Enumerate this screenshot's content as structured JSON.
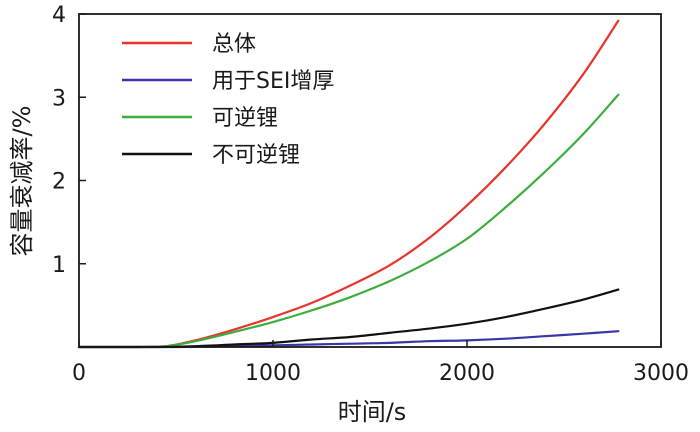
{
  "chart_data": {
    "type": "line",
    "xlabel": "时间/s",
    "ylabel": "容量衰减率/%",
    "xlim": [
      0,
      3000
    ],
    "ylim": [
      0,
      4
    ],
    "xticks": [
      0,
      1000,
      2000,
      3000
    ],
    "yticks": [
      1,
      2,
      3,
      4
    ],
    "xtick_labels": [
      "0",
      "1000",
      "2000",
      "3000"
    ],
    "ytick_labels": [
      "1",
      "2",
      "3",
      "4"
    ],
    "grid": false,
    "legend_position": "top-left",
    "series": [
      {
        "name": "总体",
        "color": "#e8342c",
        "x": [
          0,
          300,
          450,
          600,
          800,
          1000,
          1200,
          1400,
          1600,
          1800,
          2000,
          2200,
          2400,
          2600,
          2780
        ],
        "y": [
          0,
          0,
          0.01,
          0.08,
          0.21,
          0.36,
          0.53,
          0.74,
          0.98,
          1.3,
          1.7,
          2.16,
          2.68,
          3.28,
          3.92
        ]
      },
      {
        "name": "用于SEI增厚",
        "color": "#3737a5",
        "x": [
          0,
          500,
          800,
          1000,
          1200,
          1400,
          1600,
          1800,
          2000,
          2200,
          2400,
          2600,
          2780
        ],
        "y": [
          0,
          0,
          0.01,
          0.02,
          0.03,
          0.04,
          0.05,
          0.07,
          0.08,
          0.1,
          0.13,
          0.16,
          0.19
        ]
      },
      {
        "name": "可逆锂",
        "color": "#3dae3d",
        "x": [
          0,
          300,
          450,
          600,
          800,
          1000,
          1200,
          1400,
          1600,
          1800,
          2000,
          2200,
          2400,
          2600,
          2780
        ],
        "y": [
          0,
          0,
          0.01,
          0.07,
          0.18,
          0.3,
          0.44,
          0.6,
          0.79,
          1.02,
          1.3,
          1.68,
          2.1,
          2.56,
          3.03
        ]
      },
      {
        "name": "不可逆锂",
        "color": "#111111",
        "x": [
          0,
          400,
          600,
          800,
          1000,
          1200,
          1400,
          1600,
          1800,
          2000,
          2200,
          2400,
          2600,
          2780
        ],
        "y": [
          0,
          0,
          0.01,
          0.03,
          0.05,
          0.09,
          0.12,
          0.17,
          0.22,
          0.28,
          0.36,
          0.46,
          0.57,
          0.69
        ]
      }
    ]
  }
}
